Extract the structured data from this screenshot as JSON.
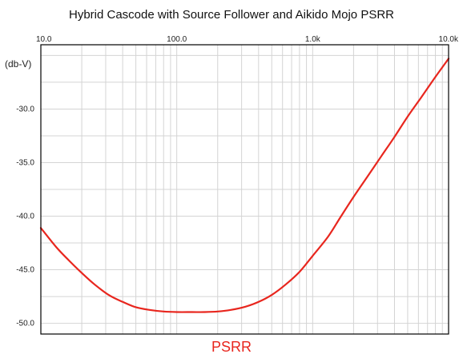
{
  "colors": {
    "series": "#e8261e",
    "label": "#e8261e",
    "grid": "#d4d4d4",
    "axis": "#000000"
  },
  "chart_data": {
    "type": "line",
    "title": "Hybrid Cascode with Source Follower and Aikido Mojo PSRR",
    "xlabel": "",
    "ylabel": "(db-V)",
    "xscale": "log",
    "xlim": [
      10,
      10000
    ],
    "ylim": [
      -51,
      -24
    ],
    "grid": true,
    "x_ticks": [
      {
        "value": 10,
        "label": "10.0"
      },
      {
        "value": 100,
        "label": "100.0"
      },
      {
        "value": 1000,
        "label": "1.0k"
      },
      {
        "value": 10000,
        "label": "10.0k"
      }
    ],
    "y_ticks": [
      {
        "value": -30,
        "label": "-30.0"
      },
      {
        "value": -35,
        "label": "-35.0"
      },
      {
        "value": -40,
        "label": "-40.0"
      },
      {
        "value": -45,
        "label": "-45.0"
      },
      {
        "value": -50,
        "label": "-50.0"
      }
    ],
    "series": [
      {
        "name": "PSRR",
        "x": [
          10,
          13,
          16,
          20,
          25,
          32,
          40,
          50,
          63,
          80,
          100,
          130,
          160,
          200,
          250,
          320,
          400,
          500,
          630,
          800,
          1000,
          1300,
          1600,
          2000,
          2500,
          3200,
          4000,
          5000,
          6300,
          8000,
          10000
        ],
        "y": [
          -41.1,
          -42.9,
          -44.1,
          -45.3,
          -46.4,
          -47.4,
          -48.0,
          -48.5,
          -48.75,
          -48.9,
          -48.95,
          -48.95,
          -48.95,
          -48.9,
          -48.75,
          -48.45,
          -48.0,
          -47.35,
          -46.4,
          -45.2,
          -43.7,
          -41.9,
          -40.1,
          -38.2,
          -36.4,
          -34.4,
          -32.6,
          -30.7,
          -28.9,
          -27.0,
          -25.3
        ]
      }
    ]
  }
}
